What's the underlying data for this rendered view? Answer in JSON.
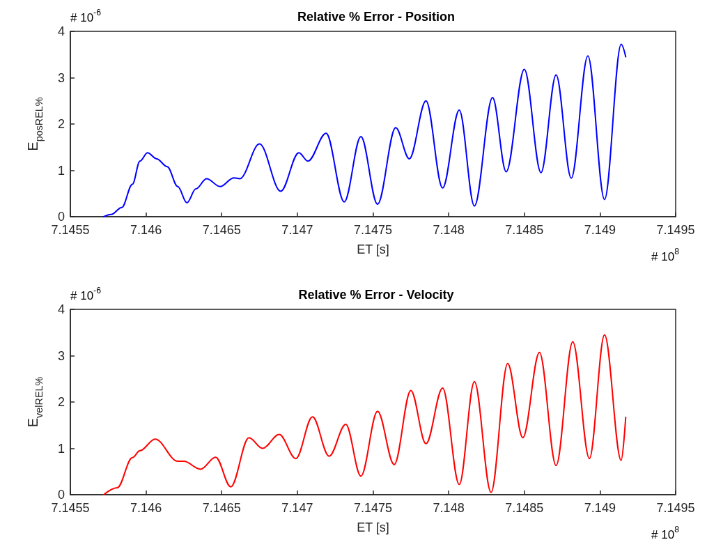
{
  "chart_data": [
    {
      "type": "line",
      "title": "Relative % Error - Position",
      "xlabel": "ET [s]",
      "ylabel": "E$_{pos}$$_{REL%}$",
      "annotations": [
        "# 10$^{-6}$",
        "# 10$^{8}$"
      ],
      "series": [
        {
          "color": "#0000ff",
          "x": [
            7.14572,
            7.14577,
            7.14584,
            7.14591,
            7.14596,
            7.14601,
            7.14607,
            7.14614,
            7.14621,
            7.14627,
            7.14633,
            7.1464,
            7.14649,
            7.14658,
            7.14662,
            7.14675,
            7.14689,
            7.14701,
            7.14707,
            7.14719,
            7.14731,
            7.14742,
            7.14753,
            7.14765,
            7.14774,
            7.14785,
            7.14796,
            7.14807,
            7.14817,
            7.14829,
            7.14838,
            7.1485,
            7.14861,
            7.14871,
            7.14881,
            7.14892,
            7.14903,
            7.14914,
            7.14917
          ],
          "values": [
            0,
            0.05,
            0.2,
            0.7,
            1.2,
            1.38,
            1.25,
            1.08,
            0.65,
            0.3,
            0.6,
            0.82,
            0.65,
            0.84,
            0.82,
            1.57,
            0.55,
            1.38,
            1.2,
            1.8,
            0.32,
            1.73,
            0.27,
            1.92,
            1.25,
            2.5,
            0.62,
            2.3,
            0.23,
            2.57,
            0.97,
            3.18,
            0.95,
            3.06,
            0.83,
            3.47,
            0.37,
            3.72,
            3.45
          ]
        }
      ],
      "xlim": [
        7.1455,
        7.1495
      ],
      "xticks": [
        7.1455,
        7.146,
        7.1465,
        7.147,
        7.1475,
        7.148,
        7.1485,
        7.149,
        7.1495
      ],
      "ylim": [
        0,
        4
      ],
      "yticks": [
        0,
        1,
        2,
        3,
        4
      ],
      "grid": false,
      "marker": "none",
      "line_style": "solid"
    },
    {
      "type": "line",
      "title": "Relative % Error - Velocity",
      "xlabel": "ET [s]",
      "ylabel": "E$_{vel}$$_{REL%}$",
      "annotations": [
        "# 10$^{-6}$",
        "# 10$^{8}$"
      ],
      "series": [
        {
          "color": "#ff0000",
          "x": [
            7.14572,
            7.14581,
            7.14591,
            7.14596,
            7.14606,
            7.14621,
            7.14625,
            7.14636,
            7.14646,
            7.14656,
            7.14668,
            7.14677,
            7.14688,
            7.14699,
            7.1471,
            7.14721,
            7.14732,
            7.14742,
            7.14753,
            7.14764,
            7.14775,
            7.14785,
            7.14796,
            7.14807,
            7.14817,
            7.14828,
            7.14839,
            7.14849,
            7.1486,
            7.14871,
            7.14882,
            7.14893,
            7.14903,
            7.14914,
            7.14917
          ],
          "values": [
            0,
            0.15,
            0.8,
            0.95,
            1.2,
            0.72,
            0.72,
            0.55,
            0.81,
            0.17,
            1.23,
            1.0,
            1.3,
            0.78,
            1.68,
            0.83,
            1.52,
            0.4,
            1.8,
            0.65,
            2.25,
            1.1,
            2.3,
            0.22,
            2.44,
            0.05,
            2.83,
            1.23,
            3.07,
            0.63,
            3.3,
            0.78,
            3.45,
            0.74,
            1.67
          ]
        }
      ],
      "xlim": [
        7.1455,
        7.1495
      ],
      "xticks": [
        7.1455,
        7.146,
        7.1465,
        7.147,
        7.1475,
        7.148,
        7.1485,
        7.149,
        7.1495
      ],
      "ylim": [
        0,
        4
      ],
      "yticks": [
        0,
        1,
        2,
        3,
        4
      ],
      "grid": false,
      "marker": "none",
      "line_style": "solid"
    }
  ]
}
